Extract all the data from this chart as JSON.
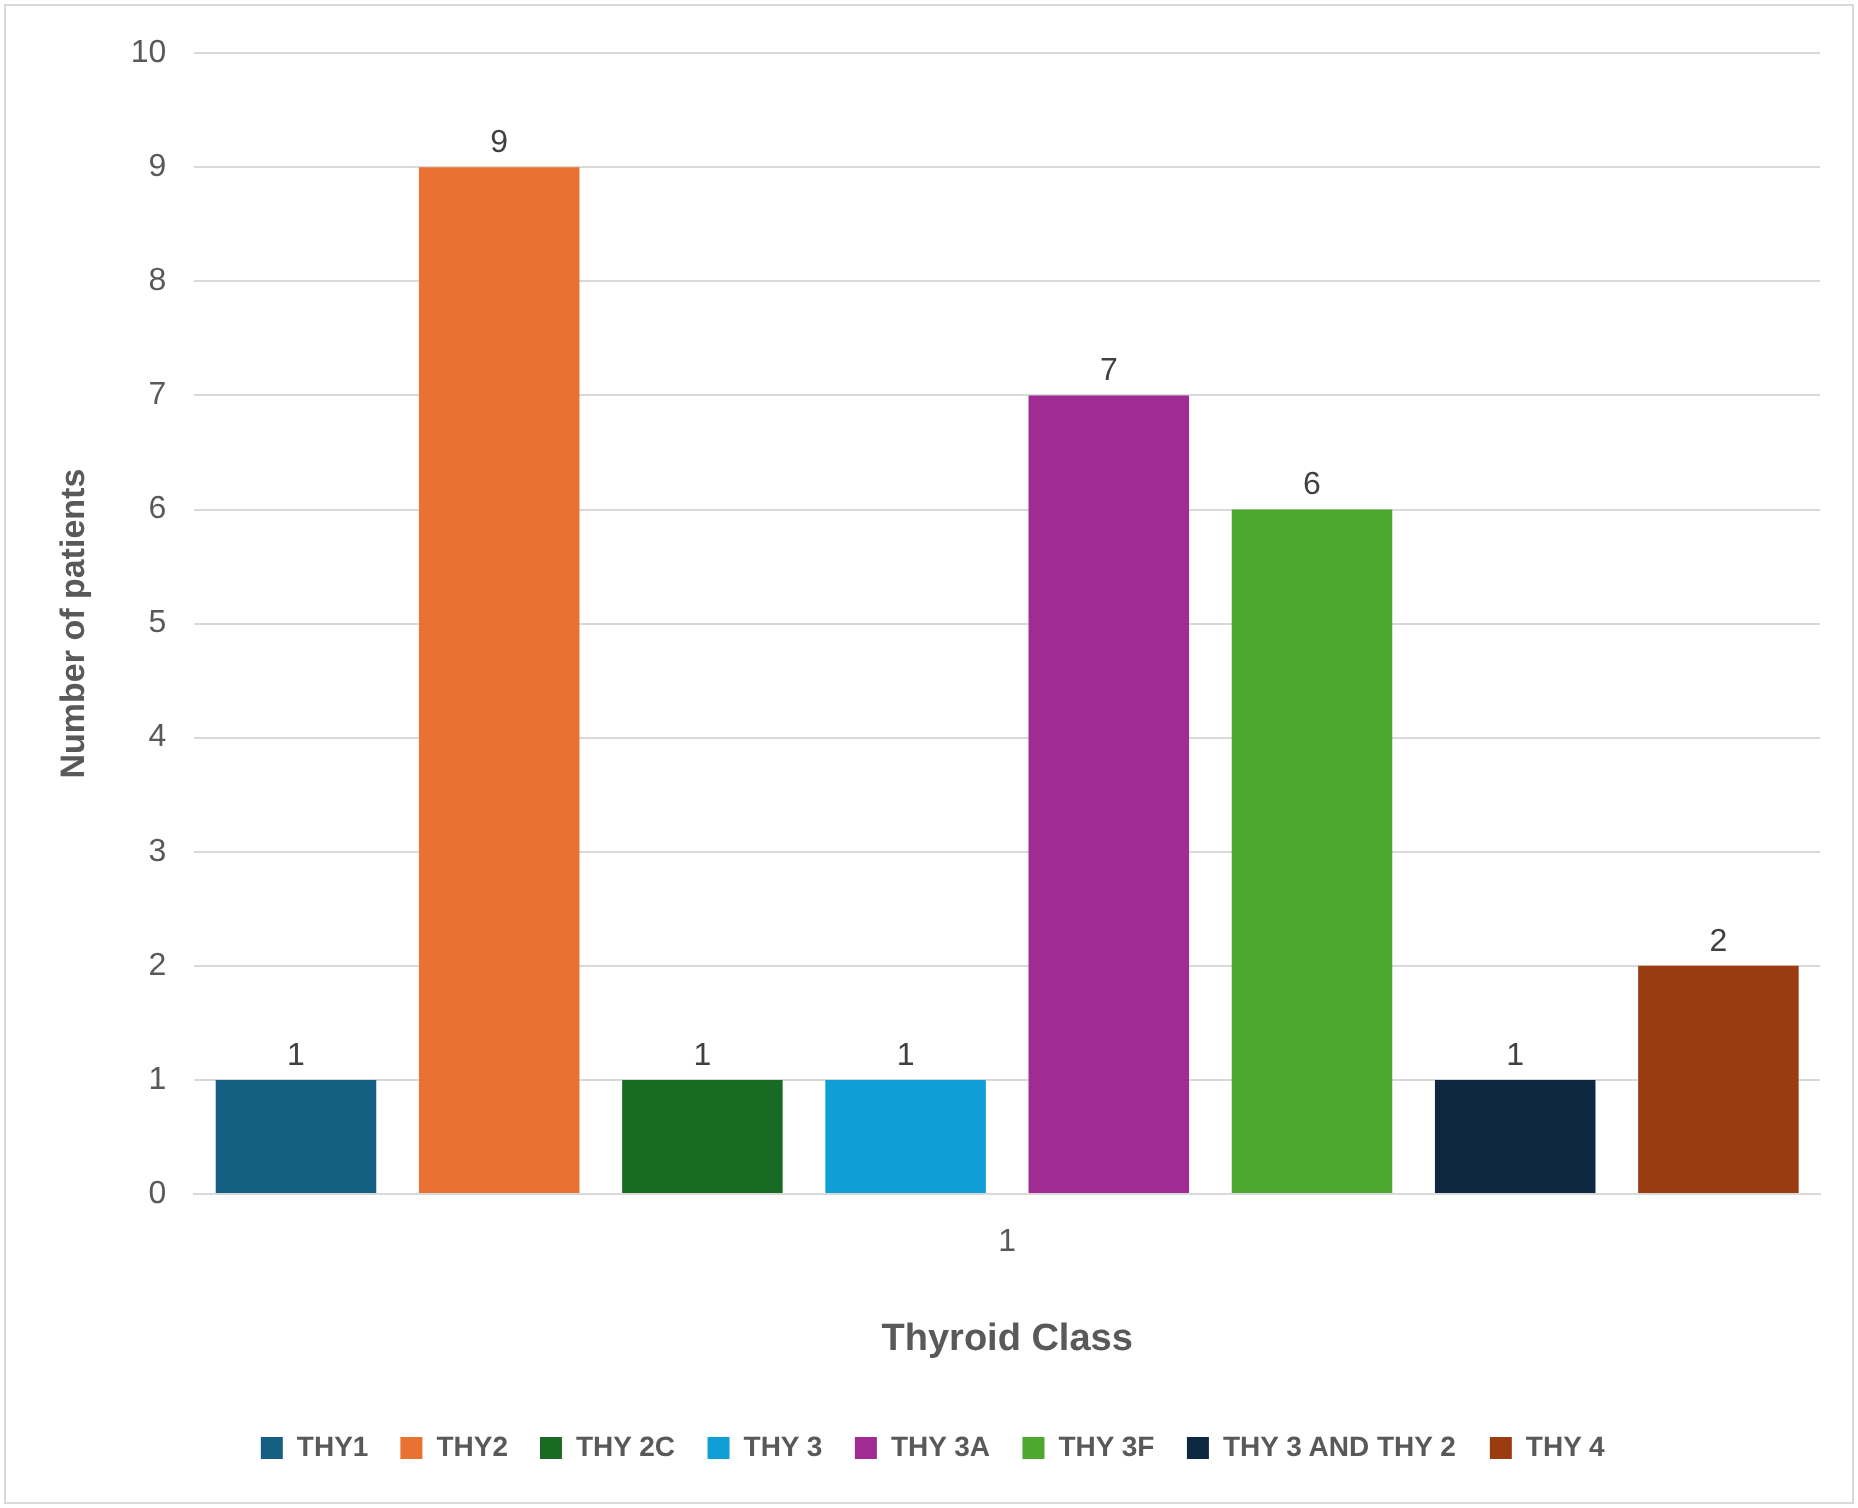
{
  "chart_data": {
    "type": "bar",
    "xlabel": "Thyroid Class",
    "ylabel": "Number of patients",
    "categories": [
      null,
      null,
      null,
      null,
      null,
      null,
      null,
      null
    ],
    "series": [
      {
        "name": "THY1",
        "color": "#156082",
        "values": [
          1,
          null,
          null,
          null,
          null,
          null,
          null,
          null
        ]
      },
      {
        "name": "THY2",
        "color": "#e97132",
        "values": [
          null,
          9,
          null,
          null,
          null,
          null,
          null,
          null
        ]
      },
      {
        "name": "THY 2C",
        "color": "#196b24",
        "values": [
          null,
          null,
          1,
          null,
          null,
          null,
          null,
          null
        ]
      },
      {
        "name": "THY 3",
        "color": "#0f9ed5",
        "values": [
          null,
          null,
          null,
          1,
          null,
          null,
          null,
          null
        ]
      },
      {
        "name": "THY 3A",
        "color": "#a02b93",
        "values": [
          null,
          null,
          null,
          null,
          7,
          null,
          null,
          null
        ]
      },
      {
        "name": "THY 3F",
        "color": "#4ea72e",
        "values": [
          null,
          null,
          null,
          null,
          null,
          6,
          null,
          null
        ]
      },
      {
        "name": "THY 3 AND THY 2",
        "color": "#0e2841",
        "values": [
          null,
          null,
          null,
          null,
          null,
          null,
          1,
          null
        ]
      },
      {
        "name": "THY 4",
        "color": "#9a3c0f",
        "values": [
          null,
          null,
          null,
          null,
          null,
          null,
          null,
          2
        ]
      }
    ],
    "annotations": [
      "1"
    ],
    "ylim": [
      0,
      10
    ],
    "yticks": [
      0,
      1,
      2,
      3,
      4,
      5,
      6,
      7,
      8,
      9,
      10
    ],
    "grid": "y",
    "legend": "bottom",
    "data_labels": true
  }
}
